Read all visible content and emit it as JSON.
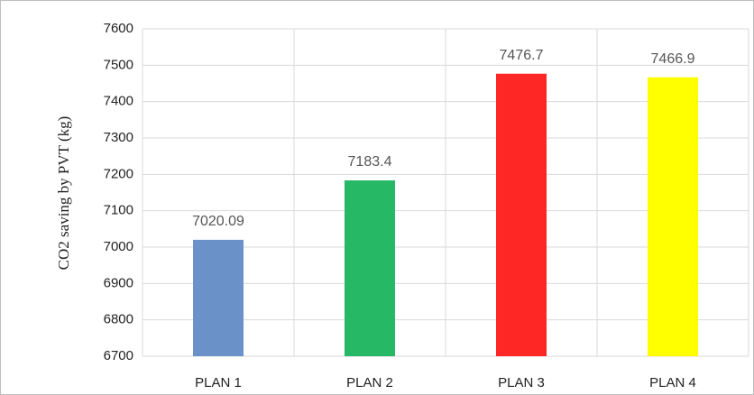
{
  "chart_data": {
    "type": "bar",
    "y_label": "CO2 saving by PVT (kg)",
    "categories": [
      "PLAN 1",
      "PLAN 2",
      "PLAN 3",
      "PLAN 4"
    ],
    "values": [
      7020.09,
      7183.4,
      7476.7,
      7466.9
    ],
    "colors": [
      "#6a92c9",
      "#27b866",
      "#ff2626",
      "#ffff00"
    ],
    "ylim": [
      6700,
      7600
    ],
    "yticks": [
      6700,
      6800,
      6900,
      7000,
      7100,
      7200,
      7300,
      7400,
      7500,
      7600
    ],
    "grid": true
  }
}
